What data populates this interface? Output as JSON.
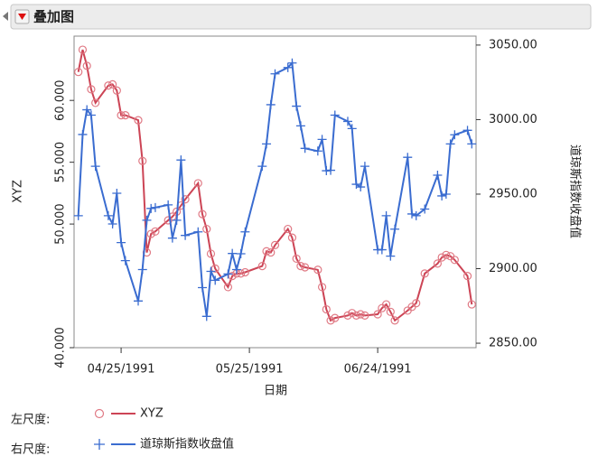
{
  "header": {
    "title": "叠加图"
  },
  "chart_data": {
    "type": "line",
    "x_label": "日期",
    "y_label": "XYZ",
    "y2_label": "道琼斯指数收盘值",
    "legend_left_label": "左尺度:",
    "legend_right_label": "右尺度:",
    "x": [
      "1991-04-15",
      "1991-04-16",
      "1991-04-17",
      "1991-04-18",
      "1991-04-19",
      "1991-04-22",
      "1991-04-23",
      "1991-04-24",
      "1991-04-25",
      "1991-04-26",
      "1991-04-29",
      "1991-04-30",
      "1991-05-01",
      "1991-05-02",
      "1991-05-03",
      "1991-05-06",
      "1991-05-07",
      "1991-05-08",
      "1991-05-09",
      "1991-05-10",
      "1991-05-13",
      "1991-05-14",
      "1991-05-15",
      "1991-05-16",
      "1991-05-17",
      "1991-05-20",
      "1991-05-21",
      "1991-05-22",
      "1991-05-23",
      "1991-05-24",
      "1991-05-28",
      "1991-05-29",
      "1991-05-30",
      "1991-05-31",
      "1991-06-03",
      "1991-06-04",
      "1991-06-05",
      "1991-06-06",
      "1991-06-07",
      "1991-06-10",
      "1991-06-11",
      "1991-06-12",
      "1991-06-13",
      "1991-06-14",
      "1991-06-17",
      "1991-06-18",
      "1991-06-19",
      "1991-06-20",
      "1991-06-21",
      "1991-06-24",
      "1991-06-25",
      "1991-06-26",
      "1991-06-27",
      "1991-06-28",
      "1991-07-01",
      "1991-07-02",
      "1991-07-03",
      "1991-07-05",
      "1991-07-08",
      "1991-07-09",
      "1991-07-10",
      "1991-07-11",
      "1991-07-12",
      "1991-07-15",
      "1991-07-16"
    ],
    "series": [
      {
        "name": "XYZ",
        "color": "#cc4455",
        "marker": "circle",
        "axis": "y",
        "values": [
          62.3,
          64.1,
          62.8,
          60.9,
          59.8,
          61.2,
          61.3,
          60.8,
          58.8,
          58.8,
          58.4,
          55.1,
          47.7,
          49.2,
          49.4,
          50.3,
          50.6,
          51.0,
          51.5,
          52.0,
          53.3,
          50.8,
          49.6,
          47.6,
          46.4,
          44.9,
          45.8,
          46.0,
          46.0,
          46.1,
          46.6,
          47.8,
          47.7,
          48.3,
          49.6,
          48.9,
          47.2,
          46.6,
          46.5,
          46.3,
          44.9,
          43.1,
          42.2,
          42.4,
          42.6,
          42.8,
          42.6,
          42.7,
          42.6,
          42.7,
          43.2,
          43.5,
          42.9,
          42.2,
          43.0,
          43.3,
          43.6,
          46.0,
          46.8,
          47.3,
          47.5,
          47.4,
          47.1,
          45.8,
          43.5
        ]
      },
      {
        "name": "道琼斯指数收盘值",
        "color": "#3a6cd0",
        "marker": "plus",
        "axis": "y2",
        "values": [
          2935.5,
          2990,
          3006.6,
          3003,
          2968.7,
          2935.5,
          2930,
          2950.6,
          2917.5,
          2905.4,
          2878.3,
          2899.4,
          2932.5,
          2940.4,
          2941.0,
          2942.8,
          2920.5,
          2932.5,
          2972.9,
          2922.3,
          2924.7,
          2887.3,
          2868,
          2898.2,
          2892.2,
          2896.4,
          2910.2,
          2899.4,
          2910,
          2924.7,
          2968.7,
          2983.7,
          3010,
          3030.7,
          3034.9,
          3038,
          3009,
          2995.8,
          2980.7,
          2978.9,
          2986.7,
          2965.7,
          2966,
          3003,
          2998.8,
          2994,
          2956.6,
          2954.8,
          2968.7,
          2912.7,
          2912.7,
          2935.5,
          2908.4,
          2926.5,
          2974.7,
          2936.7,
          2935.5,
          2940,
          2962.7,
          2948.8,
          2950,
          2983.7,
          2989.8,
          2992.8,
          2983.7
        ]
      }
    ],
    "xlim": [
      "1991-04-14",
      "1991-07-17"
    ],
    "xticks": [
      {
        "value": "1991-04-25",
        "label": "04/25/1991"
      },
      {
        "value": "1991-05-25",
        "label": "05/25/1991"
      },
      {
        "value": "1991-06-24",
        "label": "06/24/1991"
      }
    ],
    "ylim": [
      40,
      65.2
    ],
    "yticks": [
      {
        "value": 40,
        "label": "40.000"
      },
      {
        "value": 50,
        "label": "50.000"
      },
      {
        "value": 55,
        "label": "55.000"
      },
      {
        "value": 60,
        "label": "60.000"
      }
    ],
    "y2lim": [
      2847,
      3056
    ],
    "y2ticks": [
      {
        "value": 2850,
        "label": "2850.00"
      },
      {
        "value": 2900,
        "label": "2900.00"
      },
      {
        "value": 2950,
        "label": "2950.00"
      },
      {
        "value": 3000,
        "label": "3000.00"
      },
      {
        "value": 3050,
        "label": "3050.00"
      }
    ]
  }
}
